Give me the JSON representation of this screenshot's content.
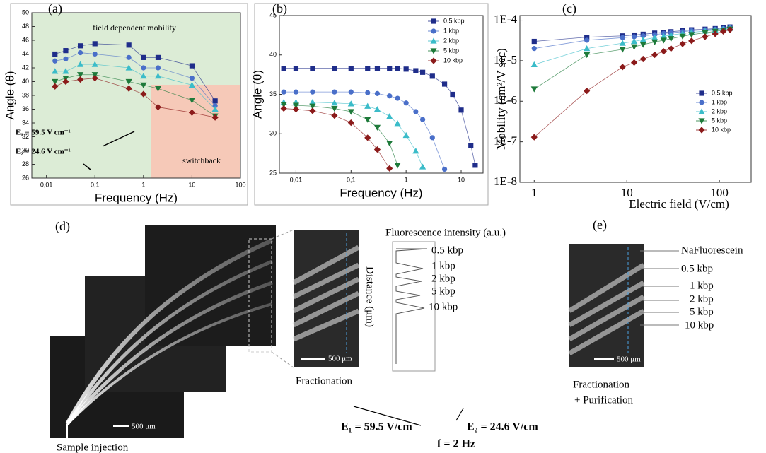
{
  "chart_data": [
    {
      "type": "line",
      "panel": "(a)",
      "xlabel": "Frequency (Hz)",
      "ylabel": "Angle (θ)",
      "xlog": true,
      "xlim": [
        0.005,
        100
      ],
      "ylim": [
        26,
        50
      ],
      "xticks": [
        {
          "value": 0.01,
          "label": "0,01"
        },
        {
          "value": 0.1,
          "label": "0,1"
        },
        1,
        10,
        100
      ],
      "yticks": [
        26,
        28,
        30,
        32,
        34,
        36,
        38,
        40,
        42,
        44,
        46,
        48,
        50
      ],
      "annotations": [
        "field dependent mobility",
        "switchback",
        "E₁ = 59.5 V cm⁻¹",
        "E₂ = 24.6 V cm⁻¹"
      ],
      "x": [
        0.015,
        0.025,
        0.05,
        0.1,
        0.5,
        1,
        2,
        10,
        30
      ],
      "series": [
        {
          "color": "#1f2d8a",
          "marker": "square",
          "values": [
            44.0,
            44.5,
            45.2,
            45.5,
            45.3,
            43.5,
            43.5,
            42.3,
            37.2
          ]
        },
        {
          "color": "#4a6fc9",
          "marker": "circle",
          "values": [
            43.0,
            43.3,
            44.2,
            44.0,
            43.5,
            42.0,
            42.0,
            40.5,
            36.5
          ]
        },
        {
          "color": "#3bbcc9",
          "marker": "triangle",
          "values": [
            41.5,
            41.5,
            42.5,
            42.5,
            42.0,
            40.8,
            40.8,
            39.5,
            36.0
          ]
        },
        {
          "color": "#1e7a3a",
          "marker": "triangle-down",
          "values": [
            40.0,
            40.5,
            41.0,
            41.0,
            40.0,
            39.5,
            39.0,
            37.3,
            35.0
          ]
        },
        {
          "color": "#8b1a1a",
          "marker": "diamond",
          "values": [
            39.3,
            40.0,
            40.3,
            40.5,
            39.0,
            38.2,
            36.3,
            35.5,
            34.8
          ]
        }
      ]
    },
    {
      "type": "line",
      "panel": "(b)",
      "xlabel": "Frequency (Hz)",
      "ylabel": "Angle (θ)",
      "xlog": true,
      "xlim": [
        0.005,
        25
      ],
      "ylim": [
        25,
        45
      ],
      "xticks": [
        {
          "value": 0.01,
          "label": "0,01"
        },
        {
          "value": 0.1,
          "label": "0,1"
        },
        1,
        10
      ],
      "yticks": [
        25,
        30,
        35,
        40,
        45
      ],
      "legend": "top-right",
      "x": [
        0.006,
        0.01,
        0.02,
        0.05,
        0.1,
        0.2,
        0.3,
        0.5,
        0.7,
        1,
        1.5,
        2,
        3,
        5,
        7,
        10,
        15,
        18
      ],
      "series": [
        {
          "name": "0.5 kbp",
          "color": "#1f2d8a",
          "marker": "square",
          "values": [
            38.3,
            38.3,
            38.3,
            38.3,
            38.3,
            38.3,
            38.3,
            38.3,
            38.3,
            38.2,
            38.0,
            37.8,
            37.3,
            36.3,
            35.0,
            33.0,
            28.5,
            26.0
          ]
        },
        {
          "name": "1 kbp",
          "color": "#4a6fc9",
          "marker": "circle",
          "values": [
            35.3,
            35.3,
            35.3,
            35.3,
            35.3,
            35.2,
            35.1,
            34.8,
            34.5,
            33.9,
            32.8,
            31.8,
            29.5,
            25.5,
            null,
            null,
            null,
            null
          ]
        },
        {
          "name": "2 kbp",
          "color": "#3bbcc9",
          "marker": "triangle",
          "values": [
            34.0,
            34.0,
            34.0,
            33.9,
            33.8,
            33.5,
            33.1,
            32.2,
            31.3,
            29.8,
            27.8,
            25.8,
            null,
            null,
            null,
            null,
            null,
            null
          ]
        },
        {
          "name": "5 kbp",
          "color": "#1e7a3a",
          "marker": "triangle-down",
          "values": [
            33.7,
            33.6,
            33.5,
            33.2,
            32.8,
            31.8,
            30.8,
            28.8,
            26.0,
            null,
            null,
            null,
            null,
            null,
            null,
            null,
            null,
            null
          ]
        },
        {
          "name": "10 kbp",
          "color": "#8b1a1a",
          "marker": "diamond",
          "values": [
            33.2,
            33.1,
            32.9,
            32.3,
            31.4,
            29.5,
            28.0,
            25.6,
            null,
            null,
            null,
            null,
            null,
            null,
            null,
            null,
            null,
            null
          ]
        }
      ]
    },
    {
      "type": "line",
      "panel": "(c)",
      "xlabel": "Electric field (V/cm)",
      "ylabel": "Mobility (cm²/V sec)",
      "xlog": true,
      "ylog": true,
      "xlim": [
        0.7,
        220
      ],
      "ylim": [
        1e-08,
        0.00013
      ],
      "xticks": [
        1,
        10,
        100
      ],
      "yticks": [
        {
          "value": 1e-08,
          "label": "1E-8"
        },
        {
          "value": 1e-07,
          "label": "1E-7"
        },
        {
          "value": 1e-06,
          "label": "1E-6"
        },
        {
          "value": 1e-05,
          "label": "1E-5"
        },
        {
          "value": 0.0001,
          "label": "1E-4"
        }
      ],
      "legend": "right",
      "x": [
        1,
        3.7,
        9,
        12,
        15,
        20,
        25,
        30,
        40,
        50,
        70,
        90,
        110,
        130
      ],
      "series": [
        {
          "name": "0.5 kbp",
          "color": "#1f2d8a",
          "marker": "square",
          "values": [
            3e-05,
            3.8e-05,
            4.1e-05,
            4.3e-05,
            4.5e-05,
            4.8e-05,
            5e-05,
            5.2e-05,
            5.5e-05,
            5.8e-05,
            6e-05,
            6.2e-05,
            6.5e-05,
            6.8e-05
          ]
        },
        {
          "name": "1 kbp",
          "color": "#4a6fc9",
          "marker": "circle",
          "values": [
            2e-05,
            3.2e-05,
            3.7e-05,
            3.9e-05,
            4.1e-05,
            4.4e-05,
            4.7e-05,
            4.9e-05,
            5.2e-05,
            5.5e-05,
            5.8e-05,
            6e-05,
            6.2e-05,
            6.5e-05
          ]
        },
        {
          "name": "2 kbp",
          "color": "#3bbcc9",
          "marker": "triangle",
          "values": [
            8e-06,
            2e-05,
            2.7e-05,
            3e-05,
            3.3e-05,
            3.7e-05,
            4e-05,
            4.3e-05,
            4.7e-05,
            5e-05,
            5.4e-05,
            5.7e-05,
            6e-05,
            6.3e-05
          ]
        },
        {
          "name": "5 kbp",
          "color": "#1e7a3a",
          "marker": "triangle-down",
          "values": [
            2e-06,
            1.4e-05,
            1.9e-05,
            2.2e-05,
            2.5e-05,
            2.9e-05,
            3.2e-05,
            3.5e-05,
            4e-05,
            4.4e-05,
            4.9e-05,
            5.3e-05,
            5.7e-05,
            6e-05
          ]
        },
        {
          "name": "10 kbp",
          "color": "#8b1a1a",
          "marker": "diamond",
          "values": [
            1.3e-07,
            1.8e-06,
            7e-06,
            9e-06,
            1.1e-05,
            1.4e-05,
            1.7e-05,
            2e-05,
            2.6e-05,
            3.1e-05,
            3.9e-05,
            4.6e-05,
            5.3e-05,
            5.8e-05
          ]
        }
      ]
    }
  ],
  "panel_d": {
    "label": "(d)",
    "scale_bar": "500 μm",
    "zoom_scale_bar": "500 μm",
    "injection": "Sample injection",
    "fractionation": "Fractionation",
    "intensity_title": "Fluorescence intensity (a.u.)",
    "distance_label": "Distance (μm)",
    "bands": [
      "0.5 kbp",
      "1 kbp",
      "2 kbp",
      "5 kbp",
      "10 kbp"
    ],
    "e1": "E₁ = 59.5 V/cm",
    "e2": "E₂ = 24.6 V/cm",
    "f": "f = 2 Hz"
  },
  "panel_e": {
    "label": "(e)",
    "scale_bar": "500 μm",
    "bands": [
      "NaFluorescein",
      "0.5 kbp",
      "1 kbp",
      "2 kbp",
      "5 kbp",
      "10 kbp"
    ],
    "caption1": "Fractionation",
    "caption2": "+ Purification"
  }
}
